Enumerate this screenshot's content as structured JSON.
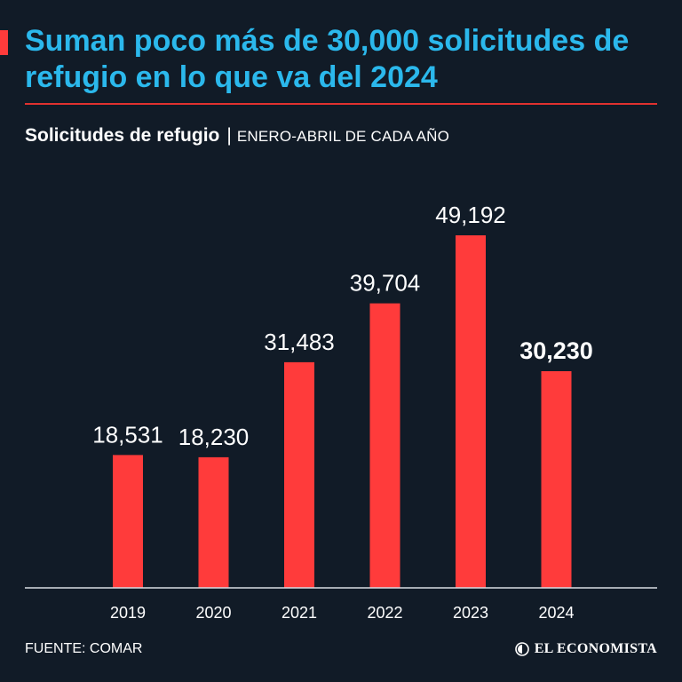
{
  "header": {
    "title": "Suman poco más de 30,000 solicitudes de refugio en lo que va del 2024",
    "subtitle_bold": "Solicitudes de refugio",
    "subtitle_separator": "|",
    "subtitle_period": "ENERO-ABRIL DE CADA AÑO"
  },
  "chart_data": {
    "type": "bar",
    "title": "Solicitudes de refugio",
    "subtitle": "ENERO-ABRIL DE CADA AÑO",
    "categories": [
      "2019",
      "2020",
      "2021",
      "2022",
      "2023",
      "2024"
    ],
    "values": [
      18531,
      18230,
      31483,
      39704,
      49192,
      30230
    ],
    "value_labels": [
      "18,531",
      "18,230",
      "31,483",
      "39,704",
      "49,192",
      "30,230"
    ],
    "highlight_index": 5,
    "xlabel": "",
    "ylabel": "",
    "ylim": [
      0,
      49192
    ],
    "grid": false
  },
  "footer": {
    "source": "FUENTE: COMAR",
    "brand": "EL ECONOMISTA"
  },
  "colors": {
    "background": "#111b27",
    "title": "#2bb8ec",
    "bar": "#ff3b3b",
    "rule": "#e0312f",
    "text": "#ffffff"
  }
}
